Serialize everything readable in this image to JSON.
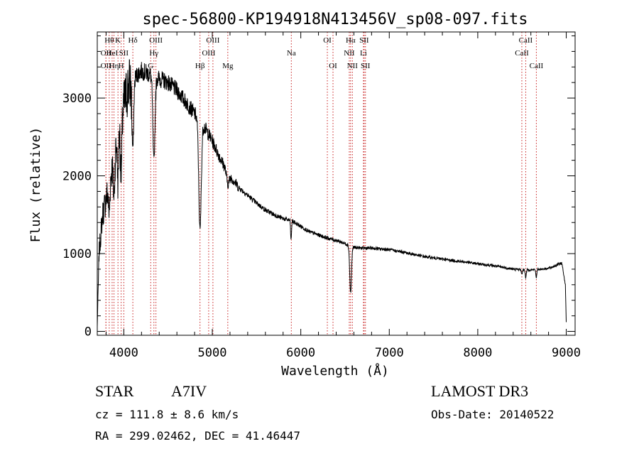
{
  "chart_data": {
    "type": "line",
    "title": "spec-56800-KP194918N413456V_sp08-097.fits",
    "xlabel": "Wavelength (Å)",
    "ylabel": "Flux (relative)",
    "xlim": [
      3700,
      9100
    ],
    "ylim": [
      -50,
      3850
    ],
    "x_ticks": [
      4000,
      5000,
      6000,
      7000,
      8000,
      9000
    ],
    "x_tick_labels": [
      "4000",
      "5000",
      "6000",
      "7000",
      "8000",
      "9000"
    ],
    "y_ticks": [
      0,
      1000,
      2000,
      3000
    ],
    "y_tick_labels": [
      "0",
      "1000",
      "2000",
      "3000"
    ],
    "grid": false,
    "series": [
      {
        "name": "flux",
        "continuum": [
          [
            3700,
            60
          ],
          [
            3720,
            1000
          ],
          [
            3760,
            1500
          ],
          [
            3800,
            1700
          ],
          [
            3850,
            2000
          ],
          [
            3900,
            2300
          ],
          [
            3950,
            2600
          ],
          [
            4000,
            2900
          ],
          [
            4050,
            3150
          ],
          [
            4100,
            3250
          ],
          [
            4200,
            3350
          ],
          [
            4300,
            3300
          ],
          [
            4400,
            3250
          ],
          [
            4500,
            3200
          ],
          [
            4600,
            3100
          ],
          [
            4700,
            2950
          ],
          [
            4800,
            2800
          ],
          [
            4900,
            2650
          ],
          [
            5000,
            2450
          ],
          [
            5100,
            2200
          ],
          [
            5200,
            2000
          ],
          [
            5300,
            1850
          ],
          [
            5400,
            1750
          ],
          [
            5500,
            1650
          ],
          [
            5600,
            1560
          ],
          [
            5700,
            1500
          ],
          [
            5800,
            1450
          ],
          [
            5900,
            1420
          ],
          [
            6000,
            1350
          ],
          [
            6100,
            1280
          ],
          [
            6200,
            1240
          ],
          [
            6300,
            1200
          ],
          [
            6400,
            1170
          ],
          [
            6500,
            1130
          ],
          [
            6600,
            1080
          ],
          [
            6700,
            1070
          ],
          [
            6800,
            1070
          ],
          [
            6900,
            1060
          ],
          [
            7000,
            1050
          ],
          [
            7200,
            1010
          ],
          [
            7400,
            960
          ],
          [
            7600,
            930
          ],
          [
            7800,
            900
          ],
          [
            8000,
            870
          ],
          [
            8200,
            840
          ],
          [
            8400,
            800
          ],
          [
            8600,
            790
          ],
          [
            8800,
            810
          ],
          [
            8950,
            880
          ],
          [
            8990,
            600
          ],
          [
            9000,
            120
          ]
        ],
        "absorption_lines": [
          [
            3835,
            400,
            8
          ],
          [
            3889,
            500,
            8
          ],
          [
            3934,
            600,
            7
          ],
          [
            3970,
            700,
            8
          ],
          [
            4102,
            900,
            10
          ],
          [
            4340,
            1100,
            12
          ],
          [
            4861,
            1400,
            14
          ],
          [
            5175,
            150,
            15
          ],
          [
            5890,
            250,
            5
          ],
          [
            6563,
            600,
            10
          ],
          [
            8498,
            60,
            6
          ],
          [
            8542,
            100,
            6
          ],
          [
            8662,
            100,
            6
          ]
        ]
      }
    ],
    "annotation_lines": [
      {
        "wavelength": 3798,
        "row": 1,
        "label": "OII"
      },
      {
        "wavelength": 3798,
        "row": 2,
        "label": "OII"
      },
      {
        "wavelength": 3835,
        "row": 0,
        "label": "Hθ"
      },
      {
        "wavelength": 3868,
        "row": 1,
        "label": "HeI"
      },
      {
        "wavelength": 3889,
        "row": 2,
        "label": "Hη"
      },
      {
        "wavelength": 3934,
        "row": 0,
        "label": "K"
      },
      {
        "wavelength": 3970,
        "row": 2,
        "label": "H"
      },
      {
        "wavelength": 4000,
        "row": 1,
        "label": "SII"
      },
      {
        "wavelength": 4102,
        "row": 0,
        "label": "Hδ"
      },
      {
        "wavelength": 4304,
        "row": 2,
        "label": "G"
      },
      {
        "wavelength": 4340,
        "row": 1,
        "label": "Hγ"
      },
      {
        "wavelength": 4363,
        "row": 0,
        "label": "OIII"
      },
      {
        "wavelength": 4861,
        "row": 2,
        "label": "Hβ"
      },
      {
        "wavelength": 4959,
        "row": 1,
        "label": "OIII"
      },
      {
        "wavelength": 5007,
        "row": 0,
        "label": "OIII"
      },
      {
        "wavelength": 5175,
        "row": 2,
        "label": "Mg"
      },
      {
        "wavelength": 5893,
        "row": 1,
        "label": "Na"
      },
      {
        "wavelength": 6300,
        "row": 0,
        "label": "OI"
      },
      {
        "wavelength": 6364,
        "row": 2,
        "label": "OI"
      },
      {
        "wavelength": 6548,
        "row": 1,
        "label": "NII"
      },
      {
        "wavelength": 6563,
        "row": 0,
        "label": "Hα"
      },
      {
        "wavelength": 6583,
        "row": 2,
        "label": "NII"
      },
      {
        "wavelength": 6708,
        "row": 1,
        "label": "Li"
      },
      {
        "wavelength": 6716,
        "row": 0,
        "label": "SII"
      },
      {
        "wavelength": 6731,
        "row": 2,
        "label": "SII"
      },
      {
        "wavelength": 8498,
        "row": 1,
        "label": "CaII"
      },
      {
        "wavelength": 8542,
        "row": 0,
        "label": "CaII"
      },
      {
        "wavelength": 8662,
        "row": 2,
        "label": "CaII"
      }
    ]
  },
  "info": {
    "class": "STAR",
    "subclass": "A7IV",
    "cz": "cz = 111.8 ± 8.6 km/s",
    "coords": "RA = 299.02462, DEC =  41.46447",
    "survey": "LAMOST DR3",
    "obs_date": "Obs-Date: 20140522"
  },
  "colors": {
    "spectrum": "#000000",
    "line_marker": "#c81e1e",
    "text": "#000000"
  }
}
